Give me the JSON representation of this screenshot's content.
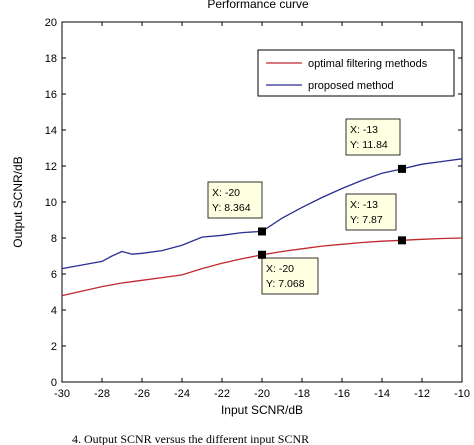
{
  "chart_data": {
    "type": "line",
    "title": "Performance curve",
    "xlabel": "Input SCNR/dB",
    "ylabel": "Output SCNR/dB",
    "xlim": [
      -30,
      -10
    ],
    "ylim": [
      0,
      20
    ],
    "xticks": [
      -30,
      -28,
      -26,
      -24,
      -22,
      -20,
      -18,
      -16,
      -14,
      -12,
      -10
    ],
    "yticks": [
      0,
      2,
      4,
      6,
      8,
      10,
      12,
      14,
      16,
      18,
      20
    ],
    "grid": false,
    "legend_position": "top-right",
    "series": [
      {
        "name": "optimal filtering methods",
        "color": "#c0282e",
        "points": [
          [
            -30,
            4.8
          ],
          [
            -29,
            5.05
          ],
          [
            -28,
            5.3
          ],
          [
            -27,
            5.5
          ],
          [
            -26,
            5.65
          ],
          [
            -25,
            5.8
          ],
          [
            -24,
            5.95
          ],
          [
            -23,
            6.3
          ],
          [
            -22,
            6.6
          ],
          [
            -21,
            6.85
          ],
          [
            -20,
            7.068
          ],
          [
            -19,
            7.25
          ],
          [
            -18,
            7.4
          ],
          [
            -17,
            7.55
          ],
          [
            -16,
            7.65
          ],
          [
            -15,
            7.75
          ],
          [
            -14,
            7.82
          ],
          [
            -13,
            7.87
          ],
          [
            -12,
            7.93
          ],
          [
            -11,
            7.97
          ],
          [
            -10,
            8.0
          ]
        ]
      },
      {
        "name": "proposed method",
        "color": "#2b2f8f",
        "points": [
          [
            -30,
            6.3
          ],
          [
            -29,
            6.5
          ],
          [
            -28,
            6.7
          ],
          [
            -27.5,
            7.0
          ],
          [
            -27,
            7.25
          ],
          [
            -26.5,
            7.1
          ],
          [
            -26,
            7.15
          ],
          [
            -25,
            7.3
          ],
          [
            -24,
            7.6
          ],
          [
            -23,
            8.05
          ],
          [
            -22,
            8.15
          ],
          [
            -21,
            8.3
          ],
          [
            -20,
            8.364
          ],
          [
            -19,
            9.1
          ],
          [
            -18,
            9.7
          ],
          [
            -17,
            10.25
          ],
          [
            -16,
            10.75
          ],
          [
            -15,
            11.2
          ],
          [
            -14,
            11.6
          ],
          [
            -13,
            11.84
          ],
          [
            -12,
            12.1
          ],
          [
            -11,
            12.25
          ],
          [
            -10,
            12.4
          ]
        ]
      }
    ],
    "datatips": [
      {
        "x": -20,
        "y": 8.364,
        "line1": "X: -20",
        "line2": "Y: 8.364"
      },
      {
        "x": -20,
        "y": 7.068,
        "line1": "X: -20",
        "line2": "Y: 7.068"
      },
      {
        "x": -13,
        "y": 11.84,
        "line1": "X: -13",
        "line2": "Y: 11.84"
      },
      {
        "x": -13,
        "y": 7.87,
        "line1": "X: -13",
        "line2": "Y: 7.87"
      }
    ]
  },
  "caption": "4. Output SCNR versus the different input SCNR"
}
